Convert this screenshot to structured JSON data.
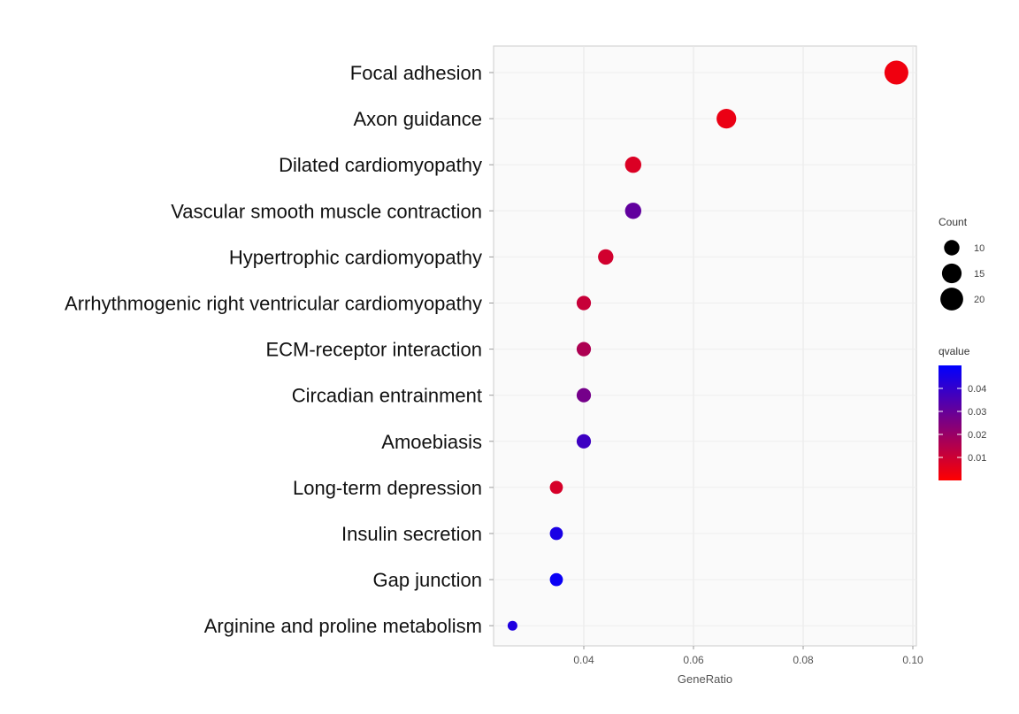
{
  "chart_data": {
    "type": "scatter",
    "title": "",
    "xlabel": "GeneRatio",
    "ylabel": "",
    "xlim": [
      0.024,
      0.1
    ],
    "x_ticks": [
      0.04,
      0.06,
      0.08,
      0.1
    ],
    "x_tick_labels": [
      "0.04",
      "0.06",
      "0.08",
      "0.10"
    ],
    "grid": true,
    "categories": [
      "Focal adhesion",
      "Axon guidance",
      "Dilated cardiomyopathy",
      "Vascular smooth muscle contraction",
      "Hypertrophic cardiomyopathy",
      "Arrhythmogenic right ventricular cardiomyopathy",
      "ECM-receptor interaction",
      "Circadian entrainment",
      "Amoebiasis",
      "Long-term depression",
      "Insulin secretion",
      "Gap junction",
      "Arginine and proline metabolism"
    ],
    "points": [
      {
        "term": "Focal adhesion",
        "gene_ratio": 0.097,
        "count": 22,
        "qvalue": 0.003
      },
      {
        "term": "Axon guidance",
        "gene_ratio": 0.066,
        "count": 15,
        "qvalue": 0.004
      },
      {
        "term": "Dilated cardiomyopathy",
        "gene_ratio": 0.049,
        "count": 11,
        "qvalue": 0.007
      },
      {
        "term": "Vascular smooth muscle contraction",
        "gene_ratio": 0.049,
        "count": 11,
        "qvalue": 0.031
      },
      {
        "term": "Hypertrophic cardiomyopathy",
        "gene_ratio": 0.044,
        "count": 10,
        "qvalue": 0.009
      },
      {
        "term": "Arrhythmogenic right ventricular cardiomyopathy",
        "gene_ratio": 0.04,
        "count": 9,
        "qvalue": 0.011
      },
      {
        "term": "ECM-receptor interaction",
        "gene_ratio": 0.04,
        "count": 9,
        "qvalue": 0.016
      },
      {
        "term": "Circadian entrainment",
        "gene_ratio": 0.04,
        "count": 9,
        "qvalue": 0.027
      },
      {
        "term": "Amoebiasis",
        "gene_ratio": 0.04,
        "count": 9,
        "qvalue": 0.038
      },
      {
        "term": "Long-term depression",
        "gene_ratio": 0.035,
        "count": 8,
        "qvalue": 0.008
      },
      {
        "term": "Insulin secretion",
        "gene_ratio": 0.035,
        "count": 8,
        "qvalue": 0.045
      },
      {
        "term": "Gap junction",
        "gene_ratio": 0.035,
        "count": 8,
        "qvalue": 0.048
      },
      {
        "term": "Arginine and proline metabolism",
        "gene_ratio": 0.027,
        "count": 6,
        "qvalue": 0.044
      }
    ],
    "size_legend": {
      "title": "Count",
      "entries": [
        {
          "value": 10,
          "label": "10"
        },
        {
          "value": 15,
          "label": "15"
        },
        {
          "value": 20,
          "label": "20"
        }
      ]
    },
    "color_legend": {
      "title": "qvalue",
      "range": [
        0.0,
        0.05
      ],
      "low_color": "#ff0000",
      "high_color": "#0000ff",
      "ticks": [
        {
          "value": 0.04,
          "label": "0.04"
        },
        {
          "value": 0.03,
          "label": "0.03"
        },
        {
          "value": 0.02,
          "label": "0.02"
        },
        {
          "value": 0.01,
          "label": "0.01"
        }
      ]
    },
    "legend_position": "right"
  }
}
